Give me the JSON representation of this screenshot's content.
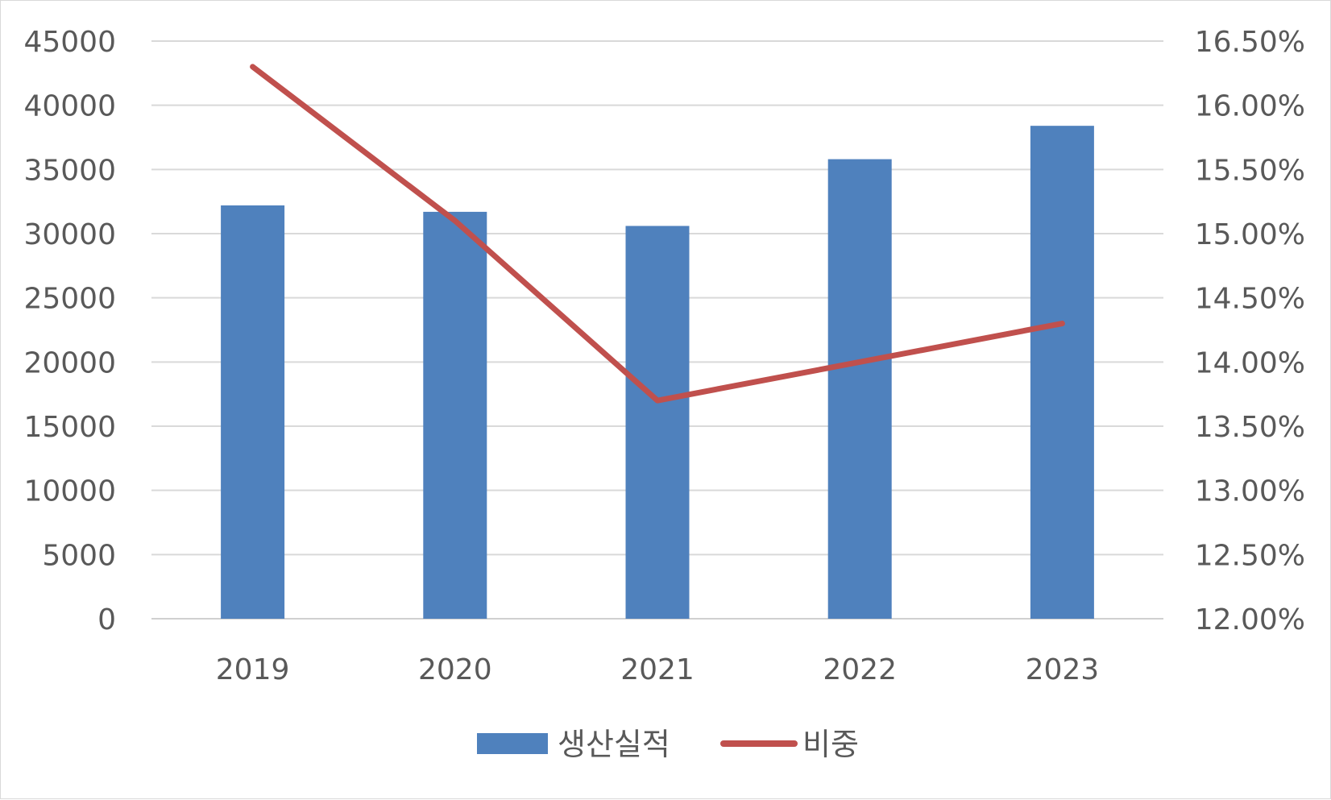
{
  "chart_data": {
    "type": "bar",
    "title": "",
    "categories": [
      "2019",
      "2020",
      "2021",
      "2022",
      "2023"
    ],
    "series": [
      {
        "name": "생산실적",
        "type": "bar",
        "axis": "left",
        "color": "#4f81bd",
        "values": [
          32200,
          31700,
          30600,
          35800,
          38400
        ]
      },
      {
        "name": "비중",
        "type": "line",
        "axis": "right",
        "color": "#c0504d",
        "values": [
          16.3,
          15.1,
          13.7,
          14.0,
          14.3
        ]
      }
    ],
    "y_left": {
      "min": 0,
      "max": 45000,
      "step": 5000,
      "ticks": [
        "0",
        "5000",
        "10000",
        "15000",
        "20000",
        "25000",
        "30000",
        "35000",
        "40000",
        "45000"
      ]
    },
    "y_right": {
      "min": 12.0,
      "max": 16.5,
      "step": 0.5,
      "unit": "%",
      "ticks": [
        "12.00%",
        "12.50%",
        "13.00%",
        "13.50%",
        "14.00%",
        "14.50%",
        "15.00%",
        "15.50%",
        "16.00%",
        "16.50%"
      ]
    },
    "grid": true,
    "legend_position": "bottom"
  }
}
